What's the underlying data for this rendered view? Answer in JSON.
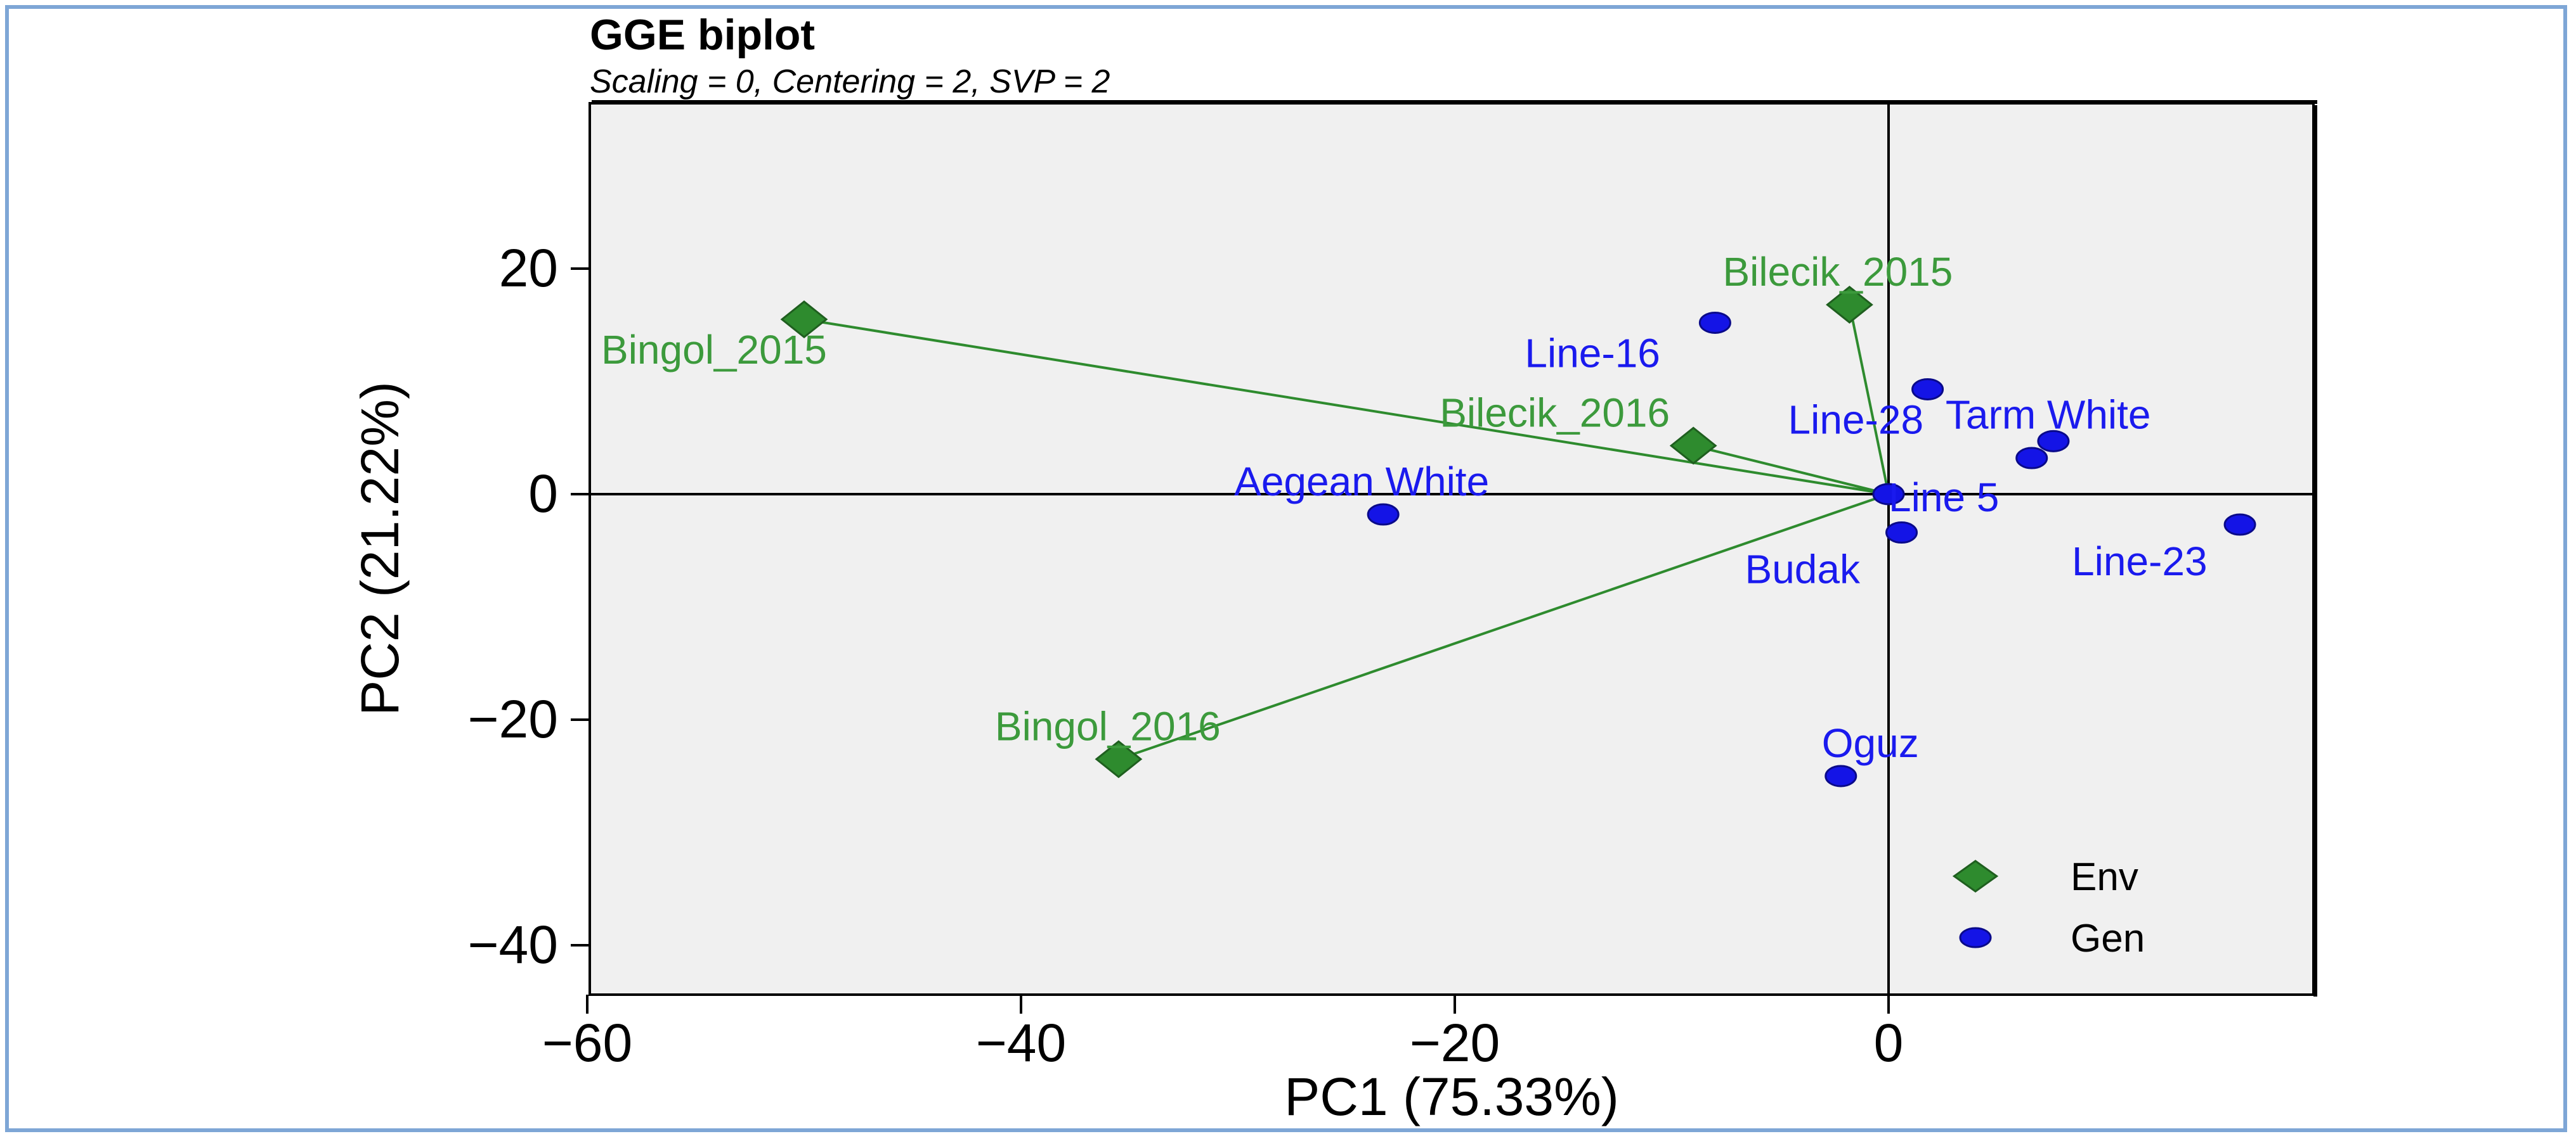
{
  "chart_data": {
    "type": "scatter",
    "title": "GGE biplot",
    "subtitle": "Scaling = 0, Centering = 2, SVP = 2",
    "xlabel": "PC1 (75.33%)",
    "ylabel": "PC2 (21.22%)",
    "xlim": [
      -60,
      20
    ],
    "ylim": [
      -45,
      35
    ],
    "xticks": [
      -60,
      -40,
      -20,
      0
    ],
    "yticks": [
      -40,
      -20,
      0,
      20
    ],
    "grid": false,
    "legend_position": "bottom-right",
    "legend": [
      {
        "label": "Env",
        "marker": "diamond",
        "color": "#2e8b2e"
      },
      {
        "label": "Gen",
        "marker": "circle",
        "color": "#1414e6"
      }
    ],
    "colors": {
      "env_marker": "#2e8b2e",
      "env_label": "#3c9a3c",
      "env_vector": "#2e8b2e",
      "gen_marker": "#1414e6",
      "gen_label": "#1a1aee",
      "panel_bg": "#f0f0f0"
    },
    "environments": [
      {
        "name": "Bingol_2015",
        "x": -50.0,
        "y": 15.5
      },
      {
        "name": "Bilecik_2015",
        "x": -1.8,
        "y": 16.8
      },
      {
        "name": "Bilecik_2016",
        "x": -9.0,
        "y": 4.3
      },
      {
        "name": "Bingol_2016",
        "x": -35.5,
        "y": -23.5
      }
    ],
    "genotypes": [
      {
        "name": "Line-16",
        "x": -8.0,
        "y": 15.2
      },
      {
        "name": "Line-28",
        "x": 1.8,
        "y": 9.3
      },
      {
        "name": "Tarm White",
        "x": 7.6,
        "y": 4.7
      },
      {
        "name": "",
        "x": 6.6,
        "y": 3.2
      },
      {
        "name": "Line 5",
        "x": 0.0,
        "y": 0.0
      },
      {
        "name": "Aegean White",
        "x": -23.3,
        "y": -1.8
      },
      {
        "name": "Budak",
        "x": 0.6,
        "y": -3.4
      },
      {
        "name": "Line-23",
        "x": 16.2,
        "y": -2.7
      },
      {
        "name": "Oguz",
        "x": -2.2,
        "y": -25.0
      }
    ]
  }
}
